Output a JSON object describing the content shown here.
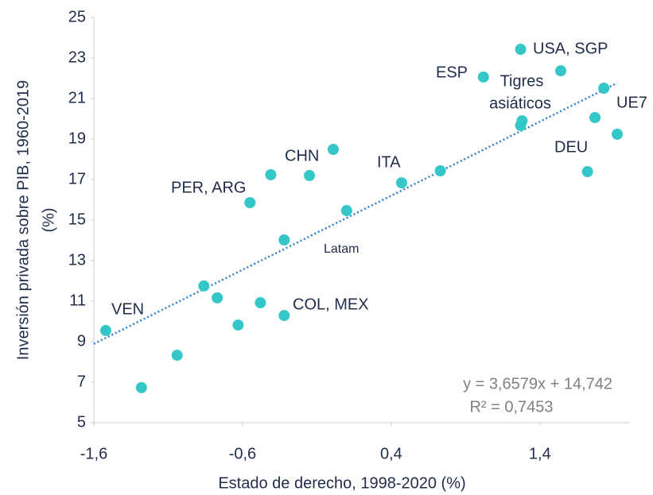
{
  "chart_data": {
    "type": "scatter",
    "xlabel": "Estado de derecho, 1998-2020 (%)",
    "ylabel": [
      "Inversión privada sobre PIB, 1960-2019",
      "(%)"
    ],
    "x": [
      -1.52,
      -1.28,
      -1.04,
      -0.86,
      -0.77,
      -0.63,
      -0.55,
      -0.48,
      -0.41,
      -0.32,
      -0.32,
      -0.15,
      0.01,
      0.1,
      0.47,
      0.73,
      1.02,
      1.27,
      1.28,
      1.27,
      1.54,
      1.72,
      1.77,
      1.83,
      1.92
    ],
    "y": [
      9.55,
      6.73,
      8.33,
      11.75,
      11.16,
      9.82,
      15.86,
      10.92,
      17.24,
      14.02,
      10.29,
      17.2,
      18.49,
      15.47,
      16.84,
      17.43,
      22.06,
      23.43,
      19.9,
      19.67,
      22.37,
      17.39,
      20.06,
      21.51,
      19.24
    ],
    "color": "#35c7c8",
    "xlim": [
      -1.6,
      2.0
    ],
    "xticks": [
      {
        "value": -1.6,
        "label": "-1,6"
      },
      {
        "value": -0.6,
        "label": "-0,6"
      },
      {
        "value": 0.4,
        "label": "0,4"
      },
      {
        "value": 1.4,
        "label": "1,4"
      }
    ],
    "ylim": [
      5,
      25
    ],
    "yticks": [
      5,
      7,
      9,
      11,
      13,
      15,
      17,
      19,
      21,
      23,
      25
    ],
    "grid": false,
    "trendline": {
      "slope": 3.6579,
      "intercept": 14.742,
      "color": "#2f7fc1",
      "label": "y = 3,6579x + 14,742",
      "r2_label": "R² = 0,7453"
    },
    "annotations": [
      "VEN",
      "PER, ARG",
      "CHN",
      "ITA",
      "COL, MEX",
      "Latam",
      "ESP",
      "USA, SGP",
      "Tigres",
      "asiáticos",
      "UE7",
      "DEU"
    ]
  }
}
